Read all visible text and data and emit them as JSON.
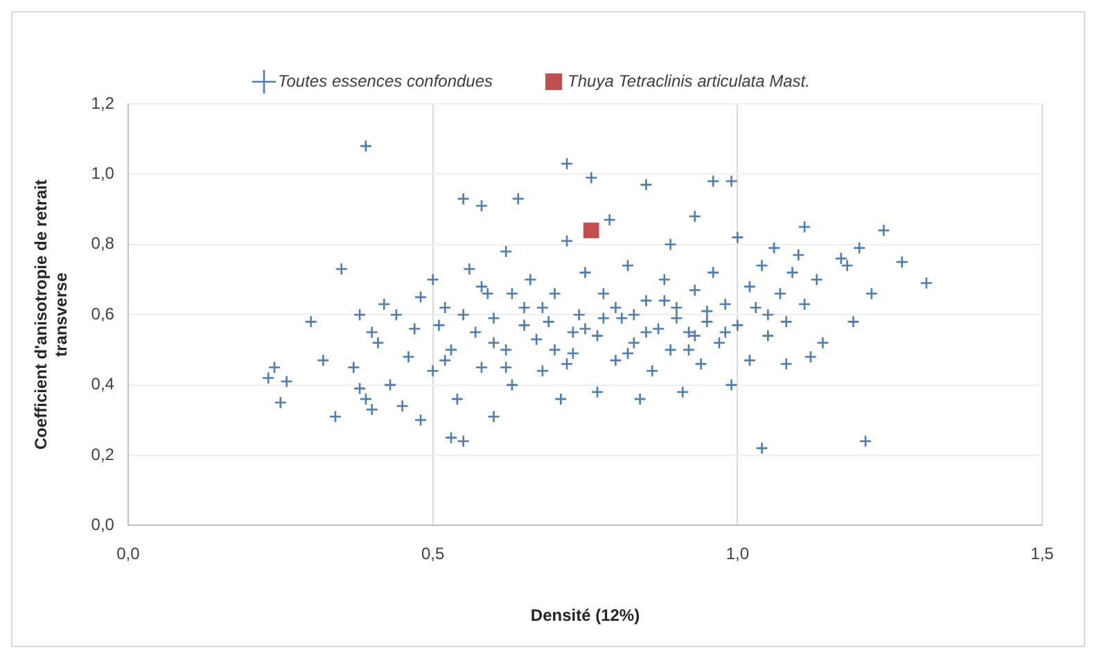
{
  "chart_data": {
    "type": "scatter",
    "xlabel": "Densité (12%)",
    "ylabel": "Coefficient d'anisotropie de retrait transverse",
    "xlim": [
      0,
      1.5
    ],
    "xticks": [
      {
        "value": 0,
        "label": "0,0"
      },
      {
        "value": 0.5,
        "label": "0,5"
      },
      {
        "value": 1,
        "label": "1,0"
      },
      {
        "value": 1.5,
        "label": "1,5"
      }
    ],
    "ylim": [
      0,
      1.2
    ],
    "yticks": [
      {
        "value": 0,
        "label": "0,0"
      },
      {
        "value": 0.2,
        "label": "0,2"
      },
      {
        "value": 0.4,
        "label": "0,4"
      },
      {
        "value": 0.6,
        "label": "0,6"
      },
      {
        "value": 0.8,
        "label": "0,8"
      },
      {
        "value": 1,
        "label": "1,0"
      },
      {
        "value": 1.2,
        "label": "1,2"
      }
    ],
    "grid": true,
    "legend": "top",
    "series": [
      {
        "name": "Toutes essences confondues",
        "color": "#4a7ebb",
        "marker": "cross",
        "x": [
          0.23,
          0.24,
          0.26,
          0.25,
          0.3,
          0.32,
          0.34,
          0.35,
          0.37,
          0.38,
          0.38,
          0.39,
          0.39,
          0.4,
          0.4,
          0.41,
          0.42,
          0.43,
          0.44,
          0.45,
          0.46,
          0.47,
          0.48,
          0.48,
          0.5,
          0.5,
          0.51,
          0.52,
          0.53,
          0.55,
          0.55,
          0.58,
          0.53,
          0.54,
          0.56,
          0.57,
          0.58,
          0.59,
          0.6,
          0.6,
          0.62,
          0.62,
          0.63,
          0.64,
          0.65,
          0.66,
          0.67,
          0.68,
          0.69,
          0.7,
          0.71,
          0.72,
          0.72,
          0.73,
          0.74,
          0.75,
          0.76,
          0.77,
          0.77,
          0.78,
          0.79,
          0.8,
          0.81,
          0.82,
          0.83,
          0.84,
          0.85,
          0.85,
          0.86,
          0.87,
          0.88,
          0.89,
          0.89,
          0.9,
          0.91,
          0.92,
          0.93,
          0.93,
          0.94,
          0.95,
          0.96,
          0.96,
          0.97,
          0.98,
          0.99,
          0.99,
          1.0,
          1.0,
          1.02,
          1.02,
          1.03,
          1.04,
          1.04,
          1.05,
          1.06,
          1.07,
          1.08,
          1.08,
          1.09,
          1.1,
          1.11,
          1.11,
          1.12,
          1.13,
          1.14,
          1.17,
          1.18,
          1.19,
          1.2,
          1.21,
          1.22,
          1.24,
          1.27,
          1.31,
          0.55,
          0.6,
          0.65,
          0.7,
          0.75,
          0.8,
          0.85,
          0.9,
          0.95,
          0.58,
          0.63,
          0.68,
          0.73,
          0.78,
          0.83,
          0.88,
          0.93,
          0.98,
          1.05,
          0.52,
          0.62,
          0.72,
          0.82,
          0.92
        ],
        "values": [
          0.42,
          0.45,
          0.41,
          0.35,
          0.58,
          0.47,
          0.31,
          0.73,
          0.45,
          0.6,
          0.39,
          0.36,
          1.08,
          0.55,
          0.33,
          0.52,
          0.63,
          0.4,
          0.6,
          0.34,
          0.48,
          0.56,
          0.3,
          0.65,
          0.7,
          0.44,
          0.57,
          0.62,
          0.25,
          0.24,
          0.93,
          0.91,
          0.5,
          0.36,
          0.73,
          0.55,
          0.45,
          0.66,
          0.31,
          0.59,
          0.78,
          0.5,
          0.4,
          0.93,
          0.62,
          0.7,
          0.53,
          0.44,
          0.58,
          0.66,
          0.36,
          0.81,
          1.03,
          0.49,
          0.6,
          0.72,
          0.99,
          0.54,
          0.38,
          0.66,
          0.87,
          0.47,
          0.59,
          0.74,
          0.52,
          0.36,
          0.97,
          0.64,
          0.44,
          0.56,
          0.7,
          0.8,
          0.5,
          0.62,
          0.38,
          0.55,
          0.88,
          0.67,
          0.46,
          0.58,
          0.98,
          0.72,
          0.52,
          0.63,
          0.98,
          0.4,
          0.57,
          0.82,
          0.68,
          0.47,
          0.62,
          0.22,
          0.74,
          0.54,
          0.79,
          0.66,
          0.58,
          0.46,
          0.72,
          0.77,
          0.85,
          0.63,
          0.48,
          0.7,
          0.52,
          0.76,
          0.74,
          0.58,
          0.79,
          0.24,
          0.66,
          0.84,
          0.75,
          0.69,
          0.6,
          0.52,
          0.57,
          0.5,
          0.56,
          0.62,
          0.55,
          0.59,
          0.61,
          0.68,
          0.66,
          0.62,
          0.55,
          0.59,
          0.6,
          0.64,
          0.54,
          0.55,
          0.6,
          0.47,
          0.45,
          0.46,
          0.49,
          0.5
        ]
      },
      {
        "name": "Thuya Tetraclinis articulata Mast.",
        "color": "#c0504d",
        "marker": "square",
        "x": [
          0.76
        ],
        "values": [
          0.84
        ]
      }
    ]
  }
}
